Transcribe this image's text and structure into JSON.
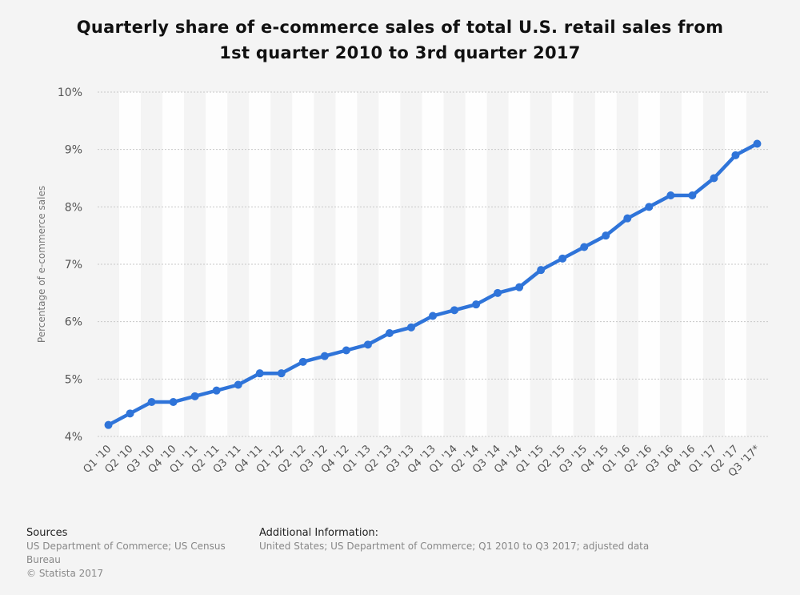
{
  "title_line1": "Quarterly share of e-commerce sales of total U.S. retail sales from",
  "title_line2": "1st quarter 2010 to 3rd quarter 2017",
  "chart_data": {
    "type": "line",
    "title": "Quarterly share of e-commerce sales of total U.S. retail sales from 1st quarter 2010 to 3rd quarter 2017",
    "xlabel": "",
    "ylabel": "Percentage of e-commerce sales",
    "ylim": [
      4,
      10
    ],
    "yticks": [
      "4%",
      "5%",
      "6%",
      "7%",
      "8%",
      "9%",
      "10%"
    ],
    "grid": true,
    "categories": [
      "Q1 '10",
      "Q2 '10",
      "Q3 '10",
      "Q4 '10",
      "Q1 '11",
      "Q2 '11",
      "Q3 '11",
      "Q4 '11",
      "Q1 '12",
      "Q2 '12",
      "Q3 '12",
      "Q4 '12",
      "Q1 '13",
      "Q2 '13",
      "Q3 '13",
      "Q4 '13",
      "Q1 '14",
      "Q2 '14",
      "Q3 '14",
      "Q4 '14",
      "Q1 '15",
      "Q2 '15",
      "Q3 '15",
      "Q4 '15",
      "Q1 '16",
      "Q2 '16",
      "Q3 '16",
      "Q4 '16",
      "Q1 '17",
      "Q2 '17",
      "Q3 '17*"
    ],
    "series": [
      {
        "values": [
          4.2,
          4.4,
          4.6,
          4.6,
          4.7,
          4.8,
          4.9,
          5.1,
          5.1,
          5.3,
          5.4,
          5.5,
          5.6,
          5.8,
          5.9,
          6.1,
          6.2,
          6.3,
          6.5,
          6.6,
          6.9,
          7.1,
          7.3,
          7.5,
          7.8,
          8.0,
          8.2,
          8.2,
          8.5,
          8.9,
          9.1
        ],
        "color": "#2f74d9"
      }
    ]
  },
  "colors": {
    "band": "#ffffff",
    "grid": "#c8c8c8",
    "line": "#2f74d9",
    "tick": "#555555"
  },
  "footer": {
    "sources_title": "Sources",
    "sources_line1": "US Department of Commerce; US Census",
    "sources_line2": "Bureau",
    "copyright": "© Statista 2017",
    "additional_title": "Additional Information:",
    "additional_text": "United States; US Department of Commerce; Q1 2010 to Q3 2017; adjusted data"
  }
}
